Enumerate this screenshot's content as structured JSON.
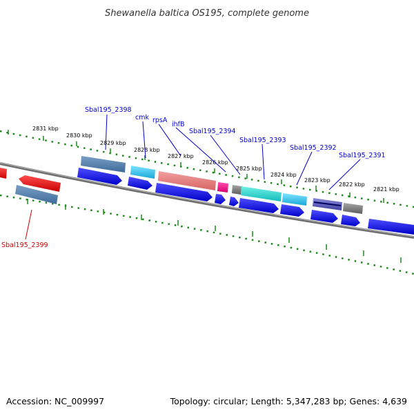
{
  "title": "Shewanella baltica OS195, complete genome",
  "footer": {
    "accession": "Accession: NC_009997",
    "summary": "Topology: circular; Length: 5,347,283 bp; Genes: 4,639"
  },
  "ticks": [
    "2831 kbp",
    "2830 kbp",
    "2829 kbp",
    "2828 kbp",
    "2827 kbp",
    "2826 kbp",
    "2825 kbp",
    "2824 kbp",
    "2823 kbp",
    "2822 kbp",
    "2821 kbp"
  ],
  "gene_labels": [
    {
      "name": "Sbal195_2398",
      "color": "#0000cc"
    },
    {
      "name": "cmk",
      "color": "#0000cc"
    },
    {
      "name": "rpsA",
      "color": "#0000cc"
    },
    {
      "name": "ihfB",
      "color": "#0000cc"
    },
    {
      "name": "Sbal195_2394",
      "color": "#0000cc"
    },
    {
      "name": "Sbal195_2393",
      "color": "#0000cc"
    },
    {
      "name": "Sbal195_2392",
      "color": "#0000cc"
    },
    {
      "name": "Sbal195_2391",
      "color": "#0000cc"
    },
    {
      "name": "Sbal195_2399",
      "color": "#cc0000"
    }
  ],
  "colors": {
    "backbone": "#808080",
    "tick_ring": "#1a8a1a",
    "cds": "#0000ee",
    "reverse_feature": "#ee0000"
  }
}
